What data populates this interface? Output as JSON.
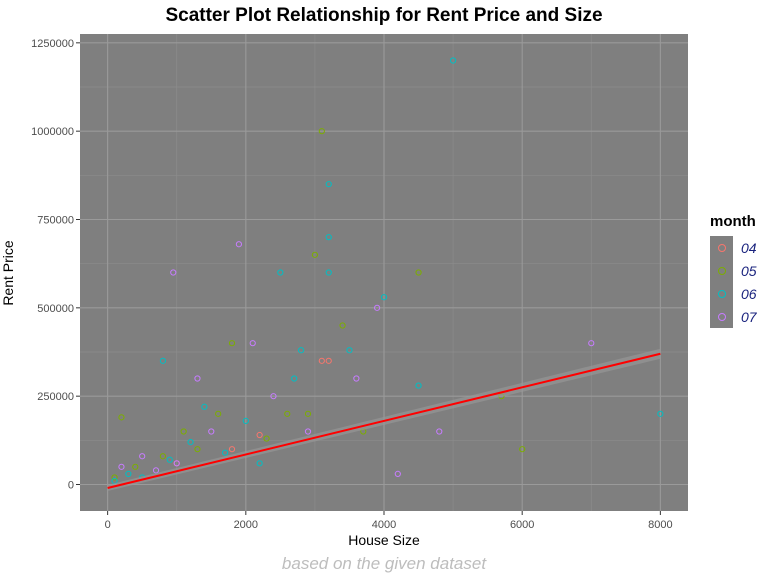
{
  "caption": "based on the given dataset",
  "legend": {
    "title": "month",
    "items": [
      {
        "label": "04",
        "color": "#f8766d"
      },
      {
        "label": "05",
        "color": "#7cae00"
      },
      {
        "label": "06",
        "color": "#00bfc4"
      },
      {
        "label": "07",
        "color": "#c77cff"
      }
    ]
  },
  "chart_data": {
    "type": "scatter",
    "title": "Scatter Plot Relationship for Rent Price and Size",
    "xlabel": "House Size",
    "ylabel": "Rent Price",
    "xlim": [
      -400,
      8400
    ],
    "ylim": [
      -75000,
      1275000
    ],
    "x_ticks": [
      0,
      2000,
      4000,
      6000,
      8000
    ],
    "y_ticks": [
      0,
      250000,
      500000,
      750000,
      1000000,
      1250000
    ],
    "y_tick_labels": [
      "0",
      "250000",
      "500000",
      "750000",
      "1000000",
      "1250000"
    ],
    "grid": true,
    "panel_color": "#7f7f7f",
    "legend_position": "right",
    "trend_line": {
      "color": "#ff0000",
      "x": [
        0,
        8000
      ],
      "y": [
        -10000,
        370000
      ]
    },
    "series": [
      {
        "name": "04",
        "color": "#f8766d",
        "points": [
          [
            1000,
            60000
          ],
          [
            1800,
            100000
          ],
          [
            2200,
            140000
          ],
          [
            3100,
            350000
          ],
          [
            3200,
            350000
          ]
        ]
      },
      {
        "name": "05",
        "color": "#7cae00",
        "points": [
          [
            100,
            20000
          ],
          [
            200,
            190000
          ],
          [
            400,
            50000
          ],
          [
            800,
            80000
          ],
          [
            1100,
            150000
          ],
          [
            1300,
            100000
          ],
          [
            1600,
            200000
          ],
          [
            1800,
            400000
          ],
          [
            2300,
            130000
          ],
          [
            2600,
            200000
          ],
          [
            2900,
            200000
          ],
          [
            3000,
            650000
          ],
          [
            3100,
            1000000
          ],
          [
            3400,
            450000
          ],
          [
            3700,
            150000
          ],
          [
            4500,
            600000
          ],
          [
            5700,
            250000
          ],
          [
            6000,
            100000
          ]
        ]
      },
      {
        "name": "06",
        "color": "#00bfc4",
        "points": [
          [
            100,
            10000
          ],
          [
            300,
            30000
          ],
          [
            500,
            20000
          ],
          [
            800,
            350000
          ],
          [
            900,
            70000
          ],
          [
            1200,
            120000
          ],
          [
            1400,
            220000
          ],
          [
            1700,
            90000
          ],
          [
            2000,
            180000
          ],
          [
            2200,
            60000
          ],
          [
            2500,
            600000
          ],
          [
            2700,
            300000
          ],
          [
            2800,
            380000
          ],
          [
            3200,
            850000
          ],
          [
            3200,
            700000
          ],
          [
            3200,
            600000
          ],
          [
            3500,
            380000
          ],
          [
            4000,
            530000
          ],
          [
            4500,
            280000
          ],
          [
            5000,
            1200000
          ],
          [
            8000,
            200000
          ]
        ]
      },
      {
        "name": "07",
        "color": "#c77cff",
        "points": [
          [
            200,
            50000
          ],
          [
            500,
            80000
          ],
          [
            700,
            40000
          ],
          [
            950,
            600000
          ],
          [
            1000,
            60000
          ],
          [
            1300,
            300000
          ],
          [
            1500,
            150000
          ],
          [
            1900,
            680000
          ],
          [
            2100,
            400000
          ],
          [
            2400,
            250000
          ],
          [
            2900,
            150000
          ],
          [
            3600,
            300000
          ],
          [
            3900,
            500000
          ],
          [
            4200,
            30000
          ],
          [
            4800,
            150000
          ],
          [
            7000,
            400000
          ]
        ]
      }
    ]
  }
}
